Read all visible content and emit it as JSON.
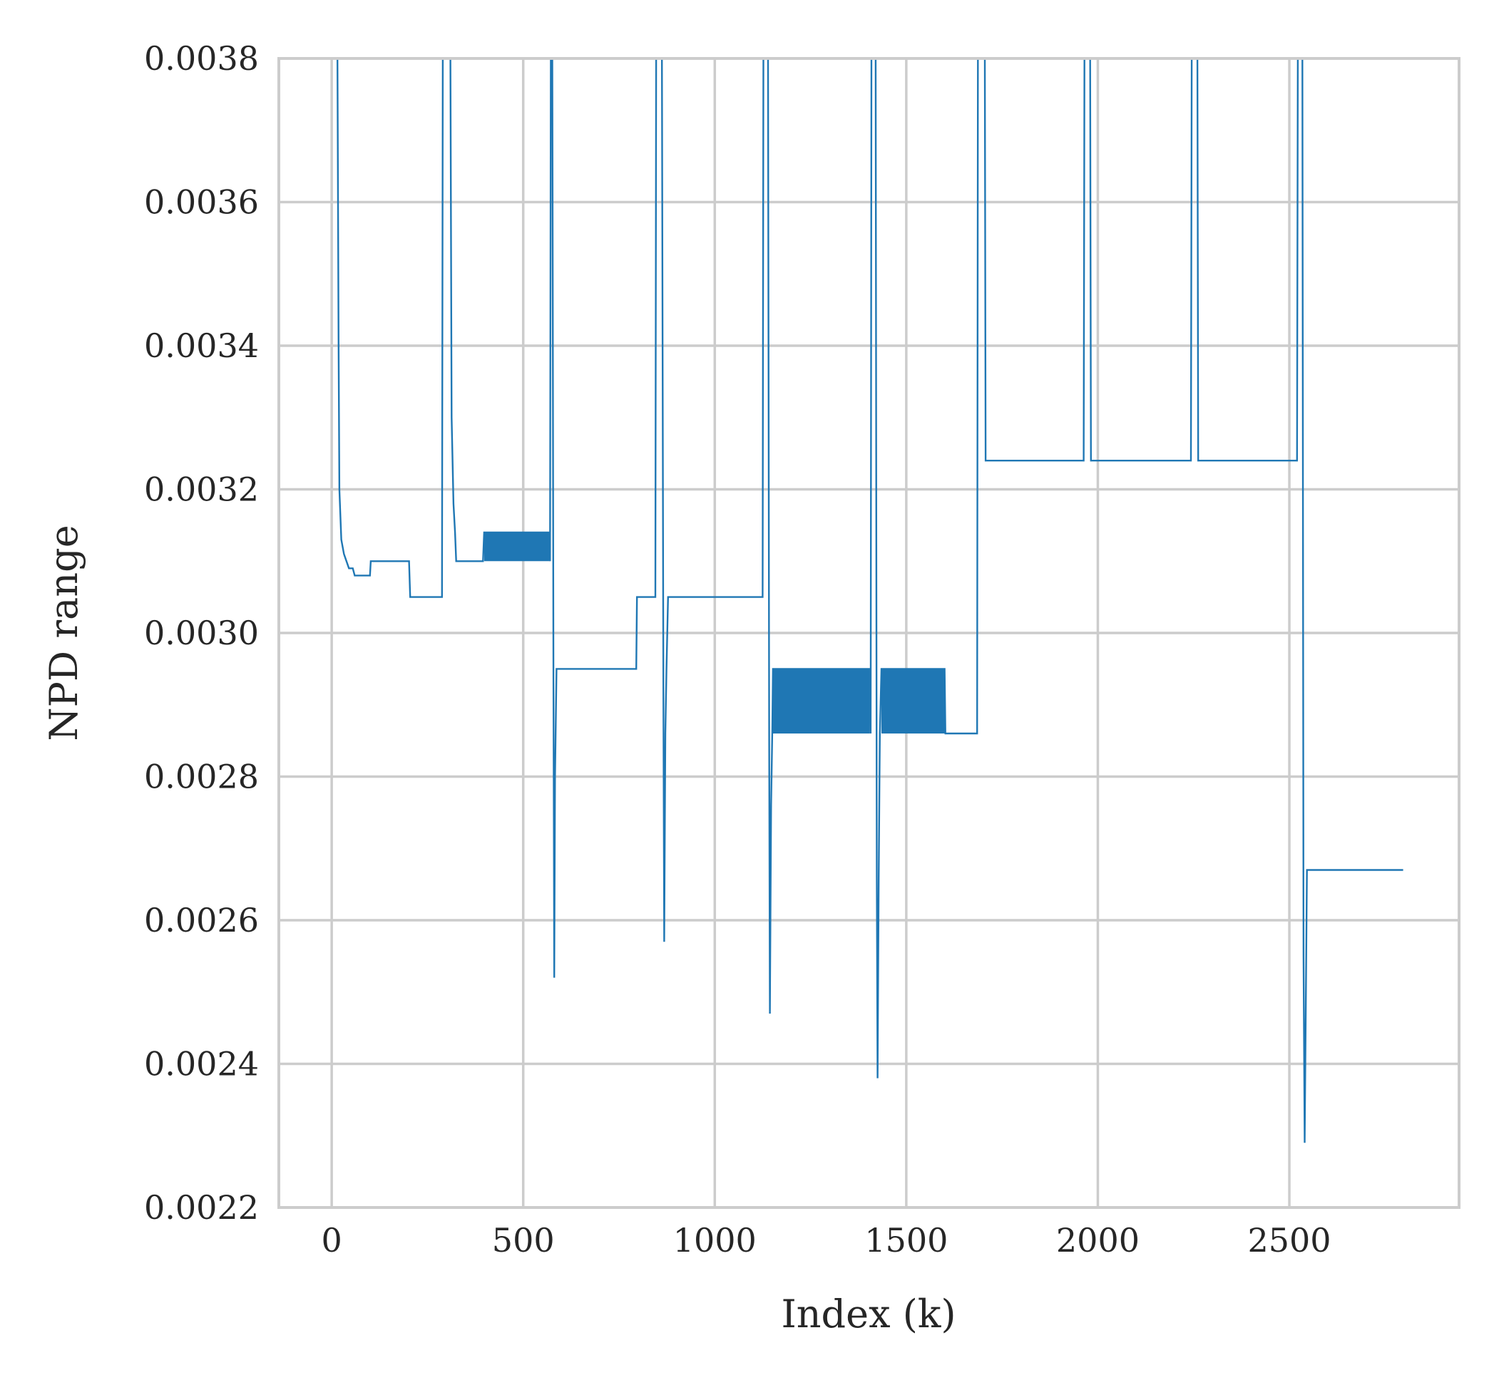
{
  "chart_data": {
    "type": "line",
    "title": "",
    "xlabel": "Index (k)",
    "ylabel": "NPD range",
    "xlim": [
      -138,
      2943
    ],
    "ylim": [
      0.0022,
      0.0038
    ],
    "xticks": [
      0,
      500,
      1000,
      1500,
      2000,
      2500
    ],
    "xtick_labels": [
      "0",
      "500",
      "1000",
      "1500",
      "2000",
      "2500"
    ],
    "yticks": [
      0.0022,
      0.0024,
      0.0026,
      0.0028,
      0.003,
      0.0032,
      0.0034,
      0.0036,
      0.0038
    ],
    "ytick_labels": [
      "0.0022",
      "0.0024",
      "0.0026",
      "0.0028",
      "0.0030",
      "0.0032",
      "0.0034",
      "0.0036",
      "0.0038"
    ],
    "grid": true,
    "color": "#1f77b4",
    "series": [
      {
        "values": [
          [
            15,
            0.0038
          ],
          [
            18,
            0.0034
          ],
          [
            20,
            0.0032
          ],
          [
            25,
            0.00313
          ],
          [
            32,
            0.00311
          ],
          [
            45,
            0.00309
          ],
          [
            55,
            0.00309
          ],
          [
            60,
            0.00308
          ],
          [
            100,
            0.00308
          ],
          [
            102,
            0.0031
          ],
          [
            202,
            0.0031
          ],
          [
            205,
            0.00305
          ],
          [
            288,
            0.00305
          ],
          [
            290,
            0.0038
          ],
          [
            310,
            0.0038
          ],
          [
            313,
            0.0033
          ],
          [
            318,
            0.00318
          ],
          [
            322,
            0.00314
          ],
          [
            325,
            0.0031
          ],
          [
            395,
            0.0031
          ],
          [
            398,
            0.00314
          ],
          [
            568,
            0.00314
          ],
          [
            570,
            0.0031
          ],
          [
            572,
            0.0038
          ],
          [
            576,
            0.0038
          ],
          [
            579,
            0.00293
          ],
          [
            581,
            0.00252
          ],
          [
            583,
            0.0028
          ],
          [
            587,
            0.00295
          ],
          [
            795,
            0.00295
          ],
          [
            797,
            0.00305
          ],
          [
            845,
            0.00305
          ],
          [
            847,
            0.0038
          ],
          [
            862,
            0.0038
          ],
          [
            866,
            0.0029
          ],
          [
            868,
            0.00257
          ],
          [
            871,
            0.00286
          ],
          [
            874,
            0.00295
          ],
          [
            878,
            0.00305
          ],
          [
            1125,
            0.00305
          ],
          [
            1127,
            0.0038
          ],
          [
            1139,
            0.0038
          ],
          [
            1142,
            0.00285
          ],
          [
            1144,
            0.00247
          ],
          [
            1147,
            0.00276
          ],
          [
            1150,
            0.00286
          ],
          [
            1152,
            0.00295
          ],
          [
            1405,
            0.00295
          ],
          [
            1407,
            0.00286
          ],
          [
            1409,
            0.0038
          ],
          [
            1420,
            0.0038
          ],
          [
            1423,
            0.00266
          ],
          [
            1425,
            0.00238
          ],
          [
            1428,
            0.00266
          ],
          [
            1431,
            0.00286
          ],
          [
            1435,
            0.00295
          ],
          [
            1600,
            0.00295
          ],
          [
            1602,
            0.00286
          ],
          [
            1685,
            0.00286
          ],
          [
            1687,
            0.0038
          ],
          [
            1705,
            0.0038
          ],
          [
            1707,
            0.00324
          ],
          [
            1963,
            0.00324
          ],
          [
            1965,
            0.0038
          ],
          [
            1980,
            0.0038
          ],
          [
            1982,
            0.00324
          ],
          [
            2243,
            0.00324
          ],
          [
            2245,
            0.0038
          ],
          [
            2260,
            0.0038
          ],
          [
            2262,
            0.00324
          ],
          [
            2520,
            0.00324
          ],
          [
            2522,
            0.0038
          ],
          [
            2534,
            0.0038
          ],
          [
            2537,
            0.00255
          ],
          [
            2540,
            0.00229
          ],
          [
            2543,
            0.00248
          ],
          [
            2546,
            0.00267
          ],
          [
            2797,
            0.00267
          ]
        ]
      }
    ],
    "bands": [
      {
        "x": [
          398,
          568
        ],
        "y": [
          0.0031,
          0.00314
        ]
      },
      {
        "x": [
          1152,
          1405
        ],
        "y": [
          0.00286,
          0.00295
        ]
      },
      {
        "x": [
          1435,
          1600
        ],
        "y": [
          0.00286,
          0.00295
        ]
      }
    ]
  }
}
